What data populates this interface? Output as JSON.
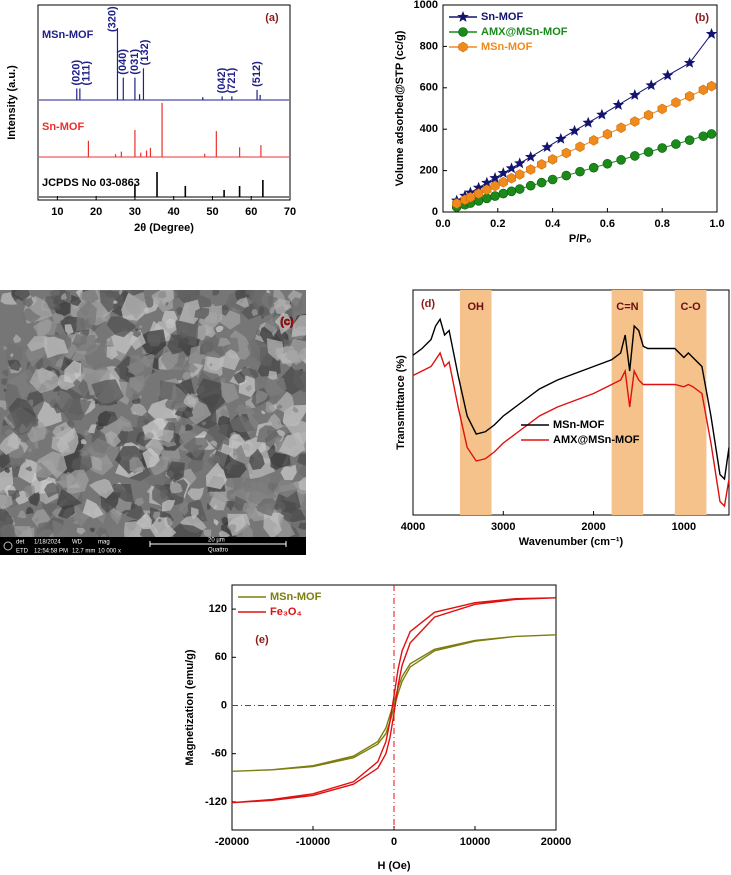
{
  "chart_data": [
    {
      "type": "stick",
      "panel_label": "(a)",
      "xlabel": "2θ (Degree)",
      "ylabel": "Intensity (a.u.)",
      "xlim": [
        5,
        70
      ],
      "xticks": [
        10,
        20,
        30,
        40,
        50,
        60,
        70
      ],
      "series": [
        {
          "name": "MSn-MOF",
          "color": "#20208a",
          "x": [
            15,
            15.8,
            25.5,
            27,
            30,
            31.2,
            32.2,
            47.5,
            52.5,
            55,
            61.5,
            62.3
          ],
          "values": [
            16,
            16,
            100,
            31,
            31,
            8,
            44,
            4,
            5,
            5,
            14,
            7
          ],
          "peak_labels": [
            "(020)",
            "(111)",
            "(320)",
            "(040)",
            "(031)",
            null,
            "(132)",
            null,
            "(042)",
            "(721)",
            "(512)",
            null
          ]
        },
        {
          "name": "Sn-MOF",
          "color": "#e83030",
          "x": [
            18,
            25,
            26.5,
            30,
            31.5,
            33,
            34,
            37,
            48,
            51,
            57,
            62.5
          ],
          "values": [
            30,
            5,
            10,
            50,
            8,
            12,
            17,
            100,
            6,
            48,
            18,
            22
          ]
        },
        {
          "name": "JCPDS No 03-0863",
          "color": "#000000",
          "x": [
            30,
            35.7,
            43,
            53,
            57,
            63
          ],
          "values": [
            48,
            100,
            44,
            28,
            44,
            68
          ]
        }
      ]
    },
    {
      "type": "line",
      "panel_label": "(b)",
      "xlabel": "P/Pₒ",
      "ylabel": "Volume adsorbed@STP (cc/g)",
      "xlim": [
        0,
        1
      ],
      "ylim": [
        0,
        1000
      ],
      "xticks": [
        {
          "value": 0,
          "label": "0.0"
        },
        0.2,
        0.4,
        0.6,
        0.8,
        {
          "value": 1,
          "label": "1.0"
        }
      ],
      "yticks": [
        0,
        200,
        400,
        600,
        800,
        1000
      ],
      "legend": "upper left",
      "series": [
        {
          "name": "Sn-MOF",
          "color": "#141470",
          "marker": "star",
          "x": [
            0.05,
            0.08,
            0.1,
            0.13,
            0.16,
            0.19,
            0.22,
            0.25,
            0.28,
            0.32,
            0.38,
            0.43,
            0.48,
            0.53,
            0.58,
            0.64,
            0.7,
            0.76,
            0.82,
            0.9,
            0.98
          ],
          "values": [
            55,
            78,
            94,
            117,
            141,
            164,
            188,
            211,
            235,
            266,
            313,
            353,
            392,
            431,
            470,
            517,
            565,
            612,
            660,
            720,
            860
          ]
        },
        {
          "name": "AMX@MSn-MOF",
          "color": "#1a8a1a",
          "marker": "circle",
          "x": [
            0.05,
            0.08,
            0.1,
            0.13,
            0.16,
            0.19,
            0.22,
            0.25,
            0.28,
            0.32,
            0.36,
            0.4,
            0.45,
            0.5,
            0.55,
            0.6,
            0.65,
            0.7,
            0.75,
            0.8,
            0.85,
            0.9,
            0.95,
            0.98
          ],
          "values": [
            24,
            35,
            43,
            54,
            66,
            77,
            89,
            100,
            111,
            127,
            142,
            157,
            176,
            195,
            214,
            233,
            252,
            271,
            290,
            309,
            328,
            347,
            366,
            377
          ]
        },
        {
          "name": "MSn-MOF",
          "color": "#f08a1c",
          "marker": "hexagon",
          "x": [
            0.05,
            0.08,
            0.1,
            0.13,
            0.16,
            0.19,
            0.22,
            0.25,
            0.28,
            0.32,
            0.36,
            0.4,
            0.45,
            0.5,
            0.55,
            0.6,
            0.65,
            0.7,
            0.75,
            0.8,
            0.85,
            0.9,
            0.95,
            0.98
          ],
          "values": [
            41,
            59,
            71,
            89,
            108,
            126,
            144,
            163,
            181,
            205,
            230,
            254,
            285,
            315,
            346,
            376,
            407,
            437,
            468,
            498,
            529,
            559,
            590,
            608
          ]
        }
      ]
    },
    {
      "type": "line",
      "panel_label": "(d)",
      "xlabel": "Wavenumber (cm⁻¹)",
      "ylabel": "Transmittance (%)",
      "xlim": [
        4000,
        500
      ],
      "ylim": [
        0,
        100
      ],
      "xticks": [
        4000,
        3000,
        2000,
        1000
      ],
      "legend": "center",
      "legend_text_color": "#000000",
      "bands": [
        {
          "label": "OH",
          "range": [
            3480,
            3130
          ]
        },
        {
          "label": "C=N",
          "range": [
            1800,
            1450
          ]
        },
        {
          "label": "C-O",
          "range": [
            1100,
            750
          ]
        }
      ],
      "band_color": "#f5c28c",
      "x": [
        4000,
        3900,
        3800,
        3750,
        3700,
        3650,
        3600,
        3500,
        3400,
        3300,
        3200,
        3100,
        3000,
        2800,
        2600,
        2400,
        2200,
        2000,
        1800,
        1700,
        1650,
        1600,
        1550,
        1500,
        1450,
        1400,
        1300,
        1200,
        1100,
        1000,
        950,
        900,
        800,
        700,
        600,
        550,
        500
      ],
      "series": [
        {
          "name": "MSn-MOF",
          "color": "#000000",
          "values": [
            71,
            74,
            78,
            84,
            87,
            80,
            82,
            62,
            44,
            36,
            37,
            40,
            44,
            50,
            56,
            60,
            63,
            66,
            69,
            72,
            80,
            64,
            84,
            82,
            75,
            74,
            74,
            74,
            74,
            70,
            72,
            70,
            66,
            44,
            18,
            16,
            30
          ]
        },
        {
          "name": "AMX@MSn-MOF",
          "color": "#e01010",
          "values": [
            62,
            64,
            66,
            69,
            72,
            66,
            68,
            48,
            30,
            24,
            25,
            28,
            32,
            38,
            44,
            48,
            51,
            54,
            58,
            60,
            64,
            48,
            64,
            60,
            58,
            58,
            58,
            58,
            58,
            57,
            58,
            57,
            54,
            32,
            6,
            4,
            16
          ]
        }
      ]
    },
    {
      "type": "line",
      "panel_label": "(e)",
      "xlabel": "H (Oe)",
      "ylabel": "Magnetization (emu/g)",
      "xlim": [
        -20000,
        20000
      ],
      "ylim": [
        -155,
        150
      ],
      "xticks": [
        -20000,
        -10000,
        0,
        10000,
        20000
      ],
      "yticks": [
        -120,
        -60,
        0,
        60,
        120
      ],
      "legend": "upper left",
      "zero_lines": true,
      "zero_line_color": "#e01010",
      "x": [
        -20000,
        -15000,
        -10000,
        -5000,
        -2000,
        -1000,
        -500,
        0,
        500,
        1000,
        2000,
        5000,
        10000,
        15000,
        20000,
        15000,
        10000,
        5000,
        2000,
        1000,
        500,
        0,
        -500,
        -1000,
        -2000,
        -5000,
        -10000,
        -15000,
        -20000
      ],
      "series": [
        {
          "name": "MSn-MOF",
          "color": "#7d7d10",
          "values": [
            -82,
            -80,
            -76,
            -65,
            -48,
            -35,
            -20,
            -3,
            15,
            30,
            48,
            68,
            80,
            86,
            88,
            86,
            81,
            70,
            52,
            36,
            22,
            4,
            -12,
            -28,
            -45,
            -63,
            -75,
            -80,
            -82
          ]
        },
        {
          "name": "Fe₃O₄",
          "color": "#e01010",
          "values": [
            -121,
            -118,
            -112,
            -98,
            -78,
            -60,
            -40,
            -10,
            25,
            50,
            78,
            110,
            126,
            132,
            134,
            133,
            128,
            116,
            92,
            68,
            45,
            12,
            -20,
            -45,
            -70,
            -95,
            -110,
            -117,
            -121
          ]
        }
      ]
    }
  ],
  "sem_image": {
    "panel_label": "(c)",
    "info_bar": [
      "det",
      "ETD",
      "1/18/2024",
      "12:54:58 PM",
      "WD",
      "12.7 mm",
      "mag",
      "10 000 x",
      "20 µm",
      "Quattro"
    ]
  }
}
